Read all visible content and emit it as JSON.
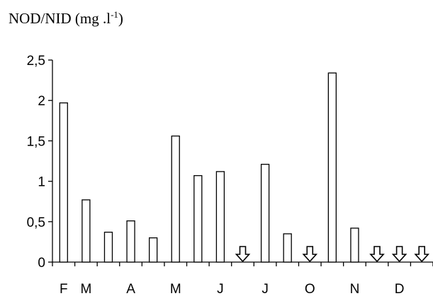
{
  "chart_data": {
    "type": "bar",
    "title": "NOD/NID (mg .l-1)",
    "title_parts": {
      "main": "NOD/NID (mg .l",
      "sup": "-1",
      "close": ")"
    },
    "ylim": [
      0,
      2.5
    ],
    "yticks": [
      "0",
      "0,5",
      "1",
      "1,5",
      "2",
      "2,5"
    ],
    "ytick_values": [
      0,
      0.5,
      1,
      1.5,
      2,
      2.5
    ],
    "month_labels": [
      "F",
      "M",
      "A",
      "M",
      "J",
      "J",
      "O",
      "N",
      "D"
    ],
    "month_label_slots": [
      0,
      1,
      3,
      5,
      7,
      9,
      11,
      13,
      15
    ],
    "values": [
      1.97,
      0.77,
      0.37,
      0.51,
      0.3,
      1.56,
      1.07,
      1.12,
      null,
      1.21,
      0.35,
      null,
      2.34,
      0.42,
      null,
      null,
      null
    ],
    "missing_marker": "down-arrow",
    "bar_color": "#ffffff",
    "stroke_color": "#000000"
  }
}
